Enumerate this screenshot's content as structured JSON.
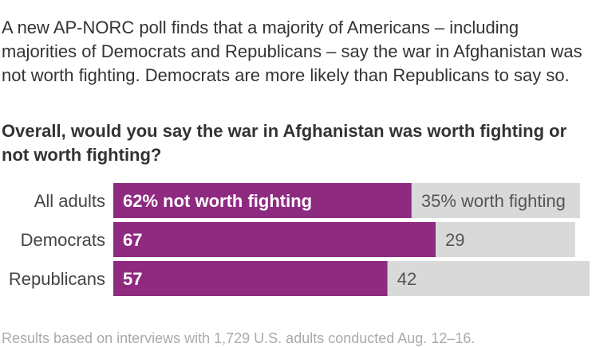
{
  "headline": "",
  "intro": "A new AP-NORC poll finds that a majority of Americans – including majorities of Democrats and Republicans – say the war in Afghanistan was not worth fighting. Democrats are more likely than Republicans to say so.",
  "question": "Overall, would you say the war in Afghanistan was worth fighting or not worth fighting?",
  "footnote": "Results based on interviews with 1,729 U.S. adults conducted Aug. 12–16.",
  "colors": {
    "not_worth": "#8e2a80",
    "worth": "#d9d9d9",
    "label_text": "#444444"
  },
  "chart_data": {
    "type": "bar",
    "orientation": "horizontal",
    "stacked": true,
    "categories": [
      "All adults",
      "Democrats",
      "Republicans"
    ],
    "series": [
      {
        "name": "not worth fighting",
        "values": [
          62,
          67,
          57
        ]
      },
      {
        "name": "worth fighting",
        "values": [
          35,
          29,
          42
        ]
      }
    ],
    "data_labels": {
      "not_worth": [
        "62% not worth fighting",
        "67",
        "57"
      ],
      "worth": [
        "35% worth fighting",
        "29",
        "42"
      ]
    },
    "xlim": [
      0,
      100
    ]
  }
}
